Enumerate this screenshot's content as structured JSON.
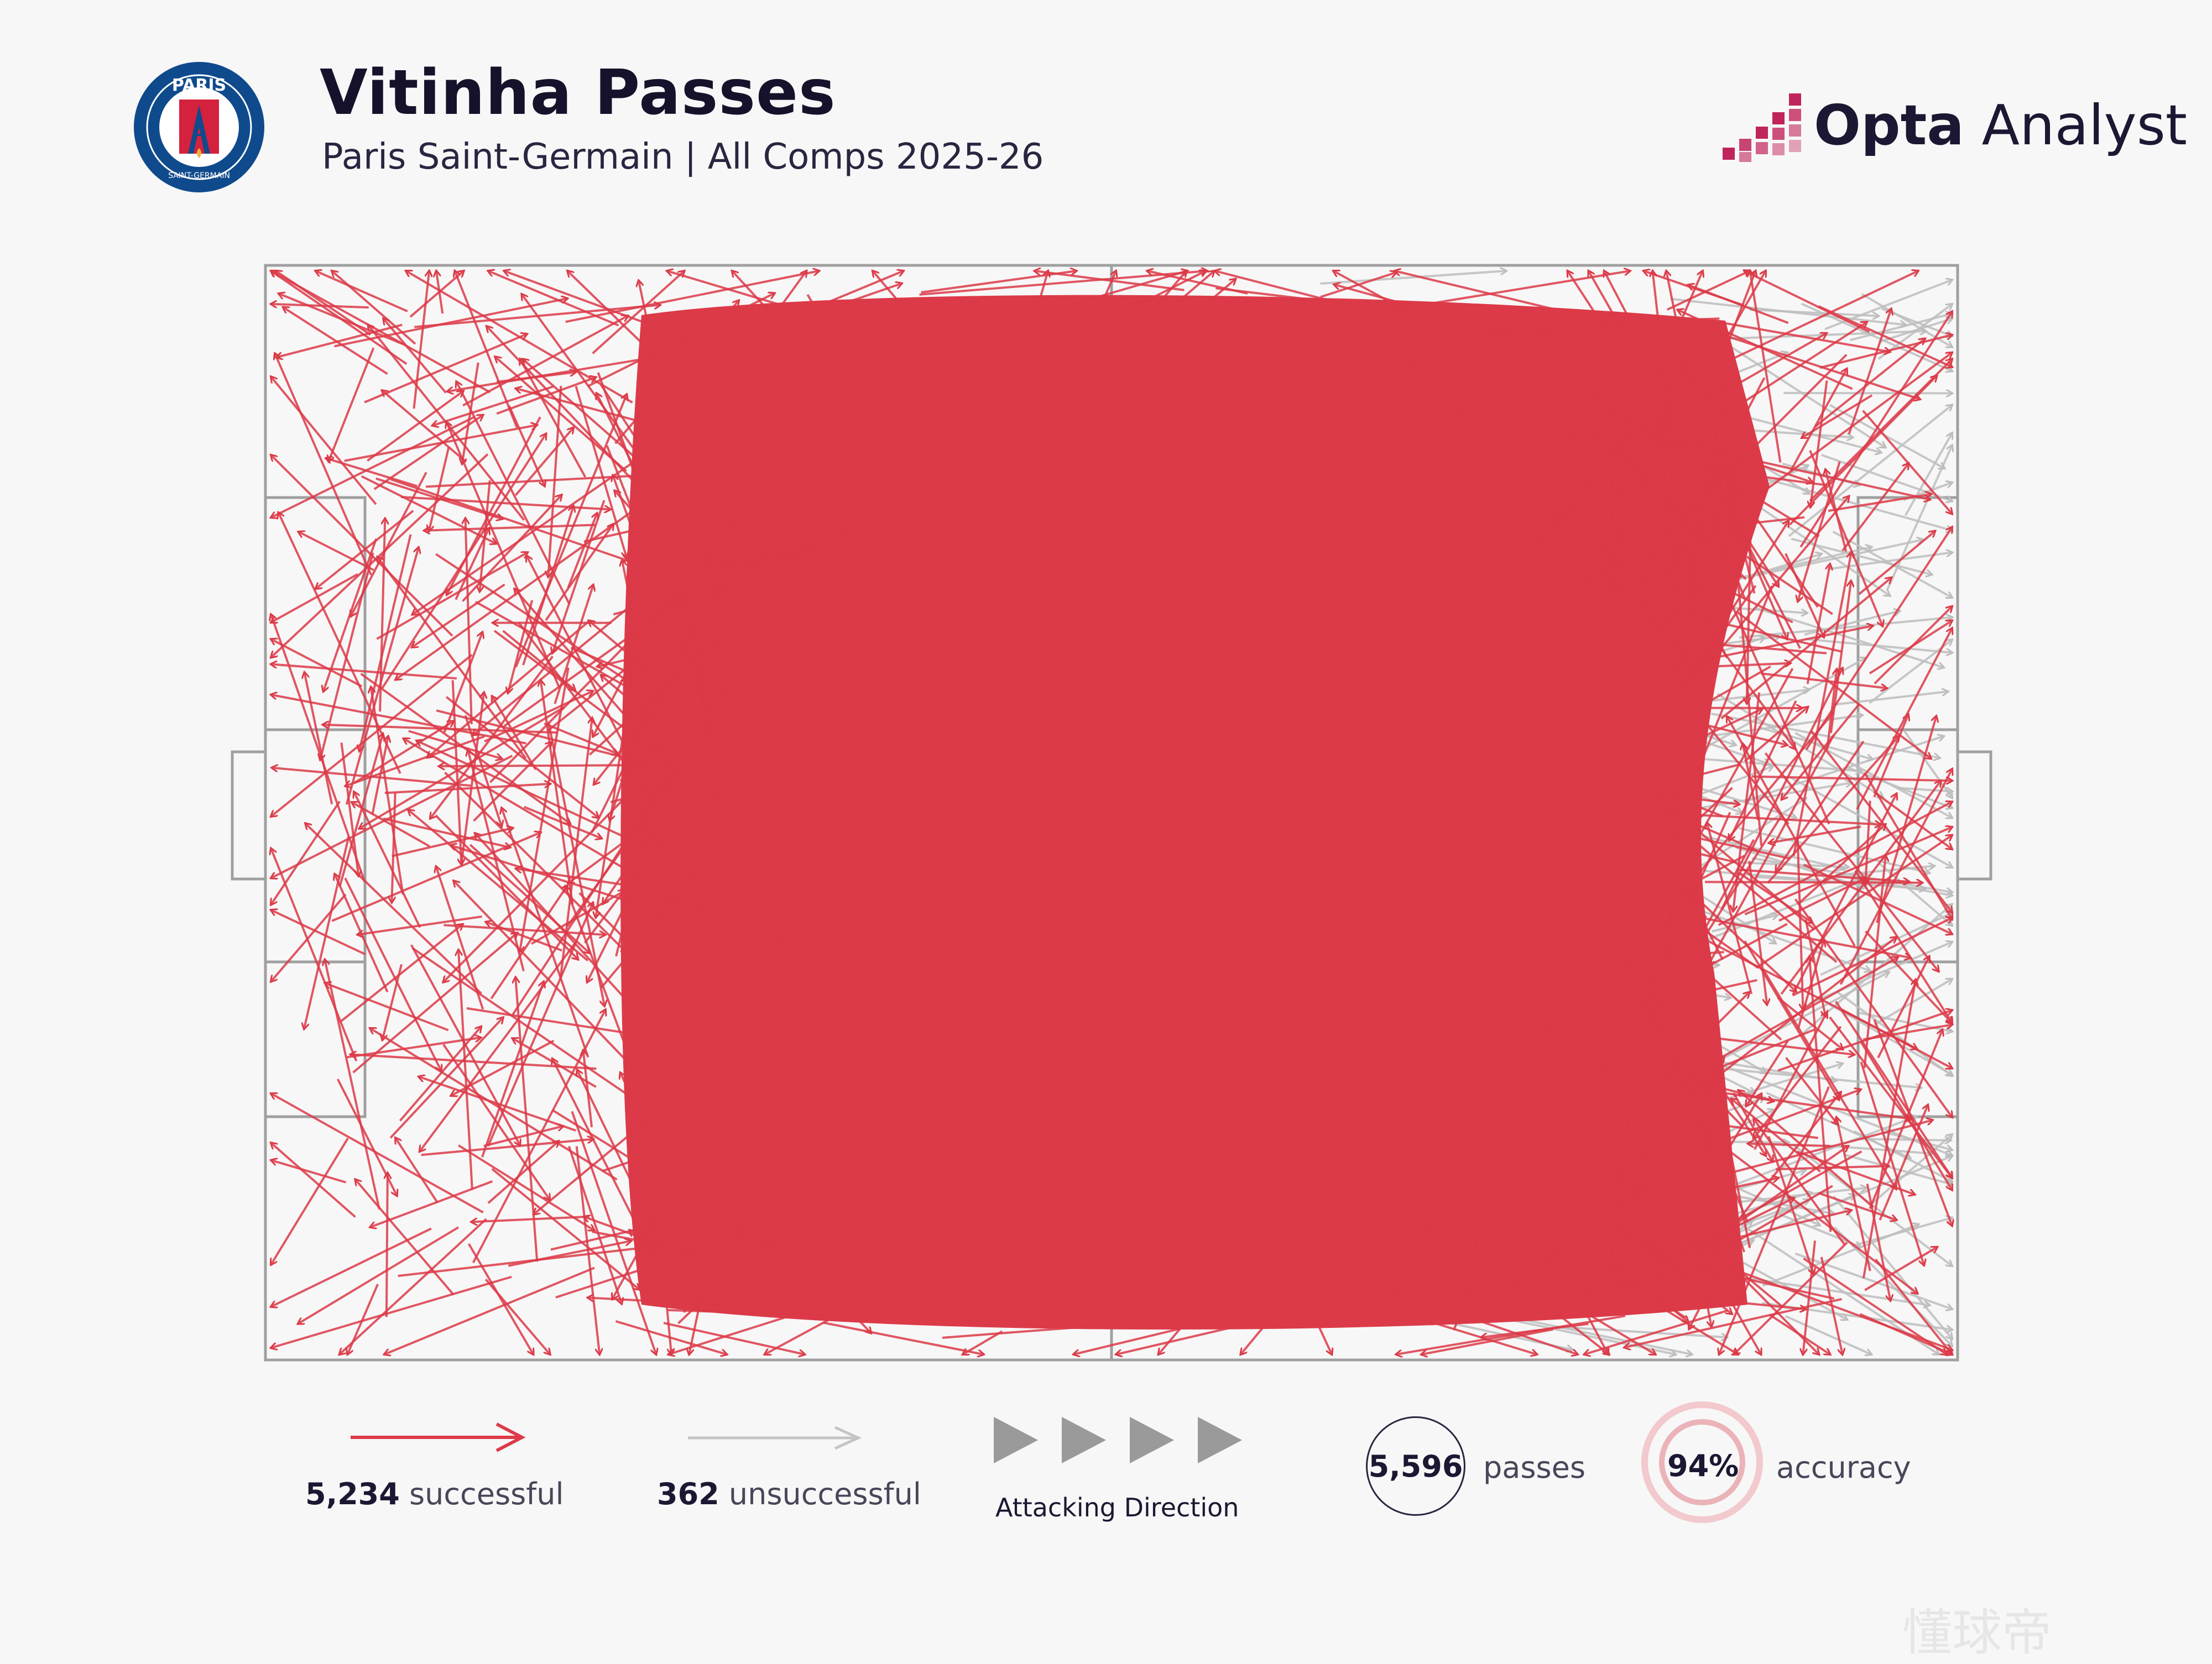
{
  "header": {
    "title": "Vitinha Passes",
    "subtitle": "Paris Saint-Germain | All Comps 2025-26",
    "crest_text_top": "PARIS",
    "crest_text_bottom": "SAINT-GERMAIN",
    "brand_bold": "Opta",
    "brand_light": " Analyst"
  },
  "colors": {
    "successful": "#dc3a48",
    "unsuccessful": "#bdbdbd",
    "pitch_lines": "#a0a0a0",
    "crest_blue": "#0f4a8c",
    "brand_accent": "#c0245c"
  },
  "legend": {
    "successful_count": "5,234",
    "successful_label": "successful",
    "unsuccessful_count": "362",
    "unsuccessful_label": "unsuccessful",
    "direction_label": "Attacking Direction",
    "passes_count": "5,596",
    "passes_label": "passes",
    "accuracy_value": "94%",
    "accuracy_label": "accuracy"
  },
  "chart_data": {
    "type": "pass-map",
    "title": "Vitinha Passes",
    "subtitle": "Paris Saint-Germain | All Comps 2025-26",
    "series": [
      {
        "name": "successful",
        "count": 5234,
        "color": "#dc3a48"
      },
      {
        "name": "unsuccessful",
        "count": 362,
        "color": "#bdbdbd"
      }
    ],
    "total_passes": 5596,
    "accuracy_percent": 94,
    "attacking_direction": "left-to-right"
  },
  "watermark": "懂球帝"
}
